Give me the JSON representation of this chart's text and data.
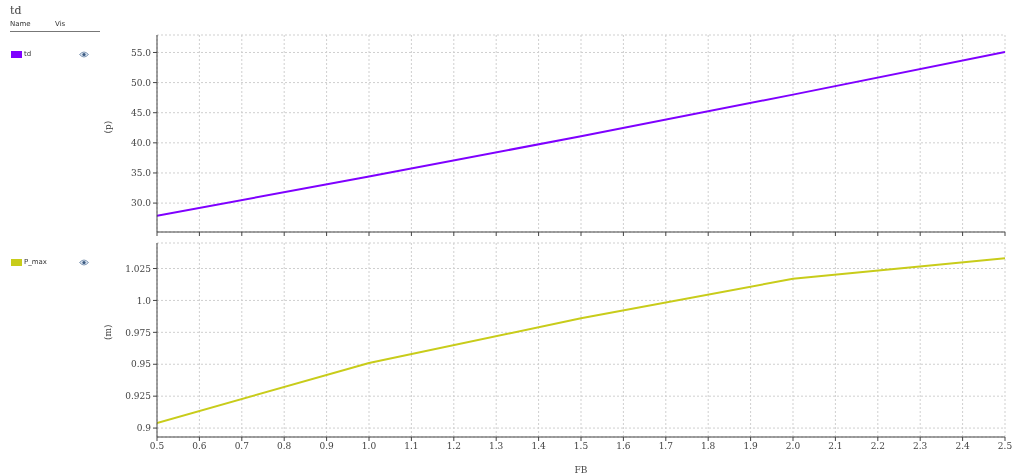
{
  "chart_data": [
    {
      "type": "line",
      "legend_title": "td",
      "annotations": [
        "Name",
        "Vis"
      ],
      "ylabel": "(p)",
      "x": [
        0.5,
        1.0,
        1.5,
        2.0,
        2.5
      ],
      "series": [
        {
          "name": "td",
          "color": "#7f00ff",
          "values": [
            27.9,
            34.4,
            41.1,
            48.0,
            55.1
          ]
        }
      ],
      "xlim": [
        0.5,
        2.5
      ],
      "xticks": [
        0.5,
        0.6,
        0.7,
        0.8,
        0.9,
        1,
        1.1,
        1.2,
        1.3,
        1.4,
        1.5,
        1.6,
        1.7,
        1.8,
        1.9,
        2,
        2.1,
        2.2,
        2.3,
        2.4,
        2.5
      ],
      "ylim": [
        25.2,
        57.9
      ],
      "yticks": [
        {
          "value": 30,
          "label": "30.0"
        },
        {
          "value": 35,
          "label": "35.0"
        },
        {
          "value": 40,
          "label": "40.0"
        },
        {
          "value": 45,
          "label": "45.0"
        },
        {
          "value": 50,
          "label": "50.0"
        },
        {
          "value": 55,
          "label": "55.0"
        }
      ],
      "tick_labels": "y",
      "grid": true,
      "legend": "left",
      "marker": "none",
      "line_style": "solid"
    },
    {
      "type": "line",
      "xlabel": "FB",
      "ylabel": "(m)",
      "x": [
        0.5,
        1.0,
        1.5,
        2.0,
        2.5
      ],
      "series": [
        {
          "name": "P_max",
          "color": "#c8cc1a",
          "values": [
            0.904,
            0.951,
            0.986,
            1.017,
            1.033
          ]
        }
      ],
      "xlim": [
        0.5,
        2.5
      ],
      "xticks": [
        0.5,
        0.6,
        0.7,
        0.8,
        0.9,
        {
          "value": 1.0,
          "label": "1.0"
        },
        1.1,
        1.2,
        1.3,
        1.4,
        1.5,
        1.6,
        1.7,
        1.8,
        1.9,
        {
          "value": 2.0,
          "label": "2.0"
        },
        2.1,
        2.2,
        2.3,
        2.4,
        2.5
      ],
      "ylim": [
        0.893,
        1.045
      ],
      "yticks": [
        0.9,
        0.925,
        0.95,
        0.975,
        {
          "value": 1.0,
          "label": "1.0"
        },
        1.025
      ],
      "grid": true,
      "legend": "left",
      "marker": "none",
      "line_style": "solid"
    }
  ]
}
